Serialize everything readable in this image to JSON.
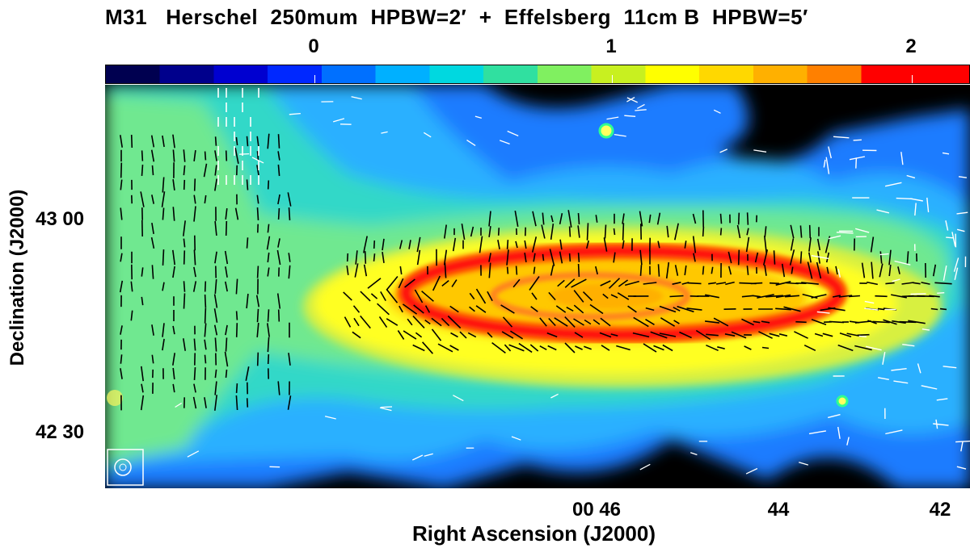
{
  "title": "M31   Herschel  250mum  HPBW=2′  +  Effelsberg  11cm B  HPBW=5′",
  "colorbar": {
    "ticks": [
      "0",
      "1",
      "2"
    ],
    "colors": [
      "#000050",
      "#00008c",
      "#0000d0",
      "#0028ff",
      "#0070ff",
      "#00b0ff",
      "#00d8e0",
      "#30e0a0",
      "#80f060",
      "#c8f020",
      "#ffff00",
      "#ffd800",
      "#ffb000",
      "#ff8000",
      "#ff0000",
      "#ff0000"
    ]
  },
  "axes": {
    "ylabel": "Declination (J2000)",
    "xlabel": "Right Ascension (J2000)",
    "yticks": [
      "43 00",
      "42 30"
    ],
    "xticks": [
      "00 46",
      "44",
      "42"
    ]
  },
  "image": {
    "description_colors": {
      "background": "#000000",
      "halo": "#2aa8ff",
      "outer": "#30e0c0",
      "disk": "#ffff30",
      "inner": "#ffc000",
      "ring": "#ff1010"
    },
    "vector_color_inner": "#000000",
    "vector_color_outer": "#ffffff"
  }
}
